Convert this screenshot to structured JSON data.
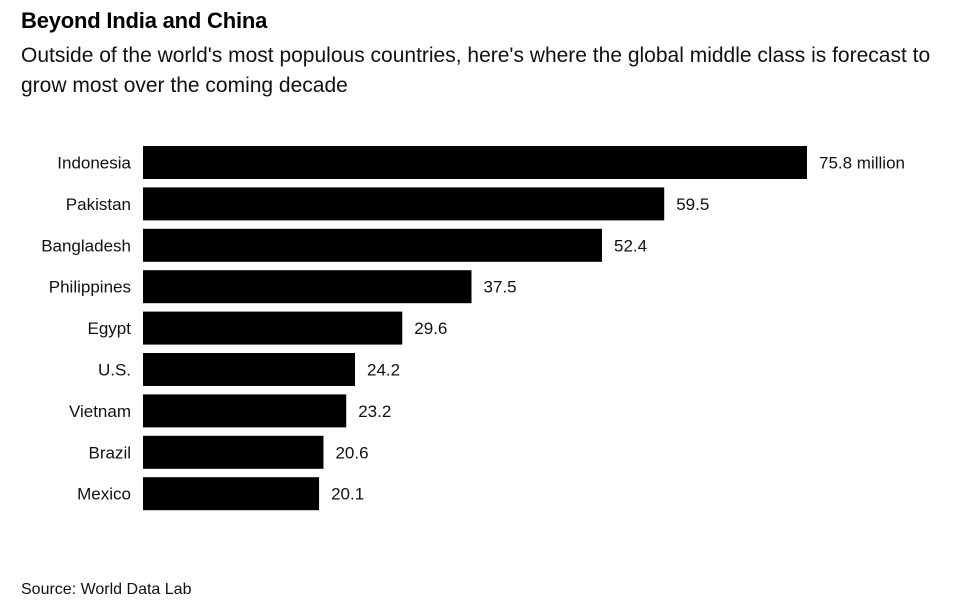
{
  "title": "Beyond India and China",
  "subtitle": "Outside of the world's most populous countries, here's where the global middle class is forecast to grow most over the coming decade",
  "source": "Source: World Data Lab",
  "colors": {
    "bar": "#000000",
    "text": "#111111",
    "background": "#ffffff"
  },
  "chart_data": {
    "type": "bar",
    "orientation": "horizontal",
    "categories": [
      "Indonesia",
      "Pakistan",
      "Bangladesh",
      "Philippines",
      "Egypt",
      "U.S.",
      "Vietnam",
      "Brazil",
      "Mexico"
    ],
    "values": [
      75.8,
      59.5,
      52.4,
      37.5,
      29.6,
      24.2,
      23.2,
      20.6,
      20.1
    ],
    "value_labels": [
      "75.8 million",
      "59.5",
      "52.4",
      "37.5",
      "29.6",
      "24.2",
      "23.2",
      "20.6",
      "20.1"
    ],
    "xlim": [
      0,
      75.8
    ],
    "grid": false,
    "legend": "none"
  }
}
